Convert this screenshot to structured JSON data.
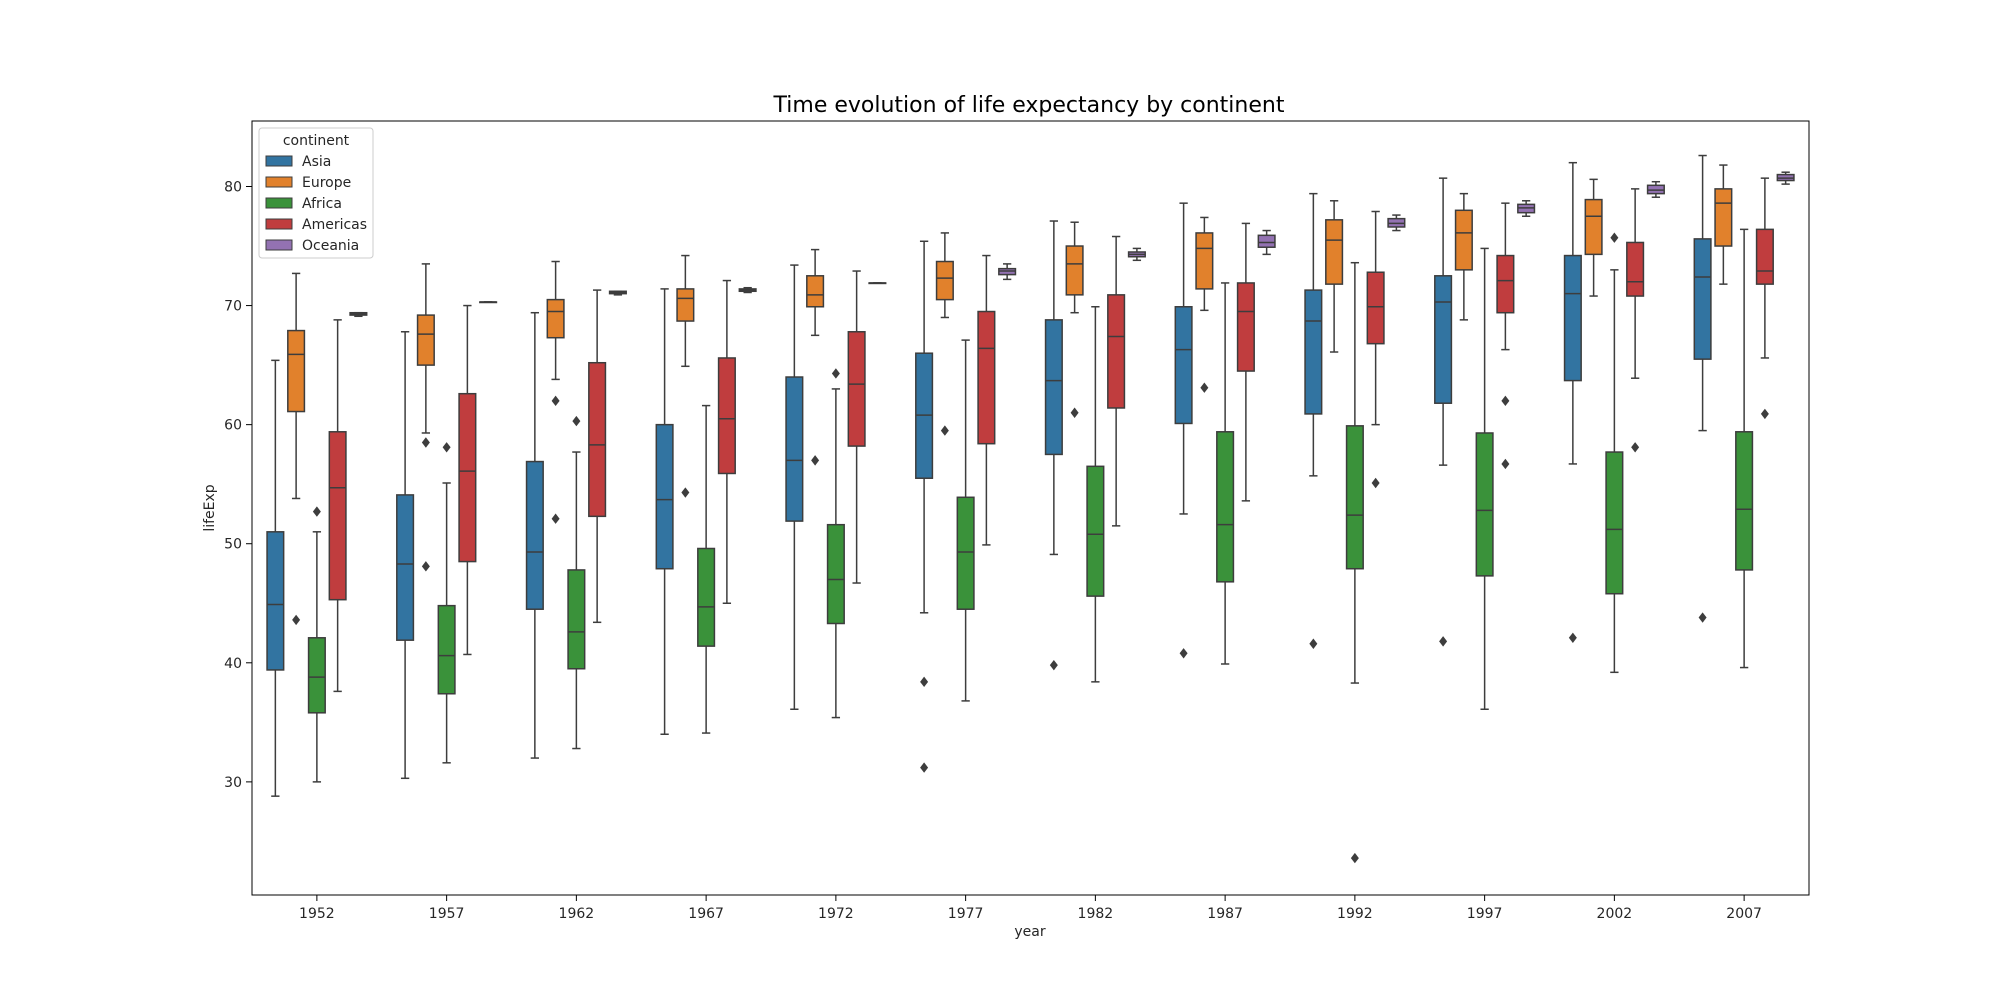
{
  "chart_data": {
    "type": "box",
    "title": "Time evolution of life expectancy by continent",
    "xlabel": "year",
    "ylabel": "lifeExp",
    "ylim": [
      20.5,
      85.5
    ],
    "yticks": [
      30,
      40,
      50,
      60,
      70,
      80
    ],
    "grid": false,
    "legend": {
      "title": "continent",
      "position": "top-left"
    },
    "categories": [
      "1952",
      "1957",
      "1962",
      "1967",
      "1972",
      "1977",
      "1982",
      "1987",
      "1992",
      "1997",
      "2002",
      "2007"
    ],
    "series": [
      {
        "name": "Asia",
        "color": "#3274a1",
        "boxes": [
          {
            "min": 28.8,
            "q1": 39.4,
            "median": 44.9,
            "q3": 51.0,
            "max": 65.4,
            "outliers": []
          },
          {
            "min": 30.3,
            "q1": 41.9,
            "median": 48.3,
            "q3": 54.1,
            "max": 67.8,
            "outliers": []
          },
          {
            "min": 32.0,
            "q1": 44.5,
            "median": 49.3,
            "q3": 56.9,
            "max": 69.4,
            "outliers": []
          },
          {
            "min": 34.0,
            "q1": 47.9,
            "median": 53.7,
            "q3": 60.0,
            "max": 71.4,
            "outliers": []
          },
          {
            "min": 36.1,
            "q1": 51.9,
            "median": 57.0,
            "q3": 64.0,
            "max": 73.4,
            "outliers": []
          },
          {
            "min": 44.2,
            "q1": 55.5,
            "median": 60.8,
            "q3": 66.0,
            "max": 75.4,
            "outliers": [
              38.4,
              31.2
            ]
          },
          {
            "min": 49.1,
            "q1": 57.5,
            "median": 63.7,
            "q3": 68.8,
            "max": 77.1,
            "outliers": [
              39.8
            ]
          },
          {
            "min": 52.5,
            "q1": 60.1,
            "median": 66.3,
            "q3": 69.9,
            "max": 78.6,
            "outliers": [
              40.8
            ]
          },
          {
            "min": 55.7,
            "q1": 60.9,
            "median": 68.7,
            "q3": 71.3,
            "max": 79.4,
            "outliers": [
              41.6
            ]
          },
          {
            "min": 56.6,
            "q1": 61.8,
            "median": 70.3,
            "q3": 72.5,
            "max": 80.7,
            "outliers": [
              41.8
            ]
          },
          {
            "min": 56.7,
            "q1": 63.7,
            "median": 71.0,
            "q3": 74.2,
            "max": 82.0,
            "outliers": [
              42.1
            ]
          },
          {
            "min": 59.5,
            "q1": 65.5,
            "median": 72.4,
            "q3": 75.6,
            "max": 82.6,
            "outliers": [
              43.8
            ]
          }
        ]
      },
      {
        "name": "Europe",
        "color": "#e1812c",
        "boxes": [
          {
            "min": 53.8,
            "q1": 61.1,
            "median": 65.9,
            "q3": 67.9,
            "max": 72.7,
            "outliers": [
              43.6
            ]
          },
          {
            "min": 59.3,
            "q1": 65.0,
            "median": 67.6,
            "q3": 69.2,
            "max": 73.5,
            "outliers": [
              58.5,
              48.1
            ]
          },
          {
            "min": 63.8,
            "q1": 67.3,
            "median": 69.5,
            "q3": 70.5,
            "max": 73.7,
            "outliers": [
              62.0,
              52.1
            ]
          },
          {
            "min": 64.9,
            "q1": 68.7,
            "median": 70.6,
            "q3": 71.4,
            "max": 74.2,
            "outliers": [
              54.3
            ]
          },
          {
            "min": 67.5,
            "q1": 69.9,
            "median": 70.9,
            "q3": 72.5,
            "max": 74.7,
            "outliers": [
              57.0
            ]
          },
          {
            "min": 69.0,
            "q1": 70.5,
            "median": 72.3,
            "q3": 73.7,
            "max": 76.1,
            "outliers": [
              59.5
            ]
          },
          {
            "min": 69.4,
            "q1": 70.9,
            "median": 73.5,
            "q3": 75.0,
            "max": 77.0,
            "outliers": [
              61.0
            ]
          },
          {
            "min": 69.6,
            "q1": 71.4,
            "median": 74.8,
            "q3": 76.1,
            "max": 77.4,
            "outliers": [
              63.1
            ]
          },
          {
            "min": 66.1,
            "q1": 71.8,
            "median": 75.5,
            "q3": 77.2,
            "max": 78.8,
            "outliers": []
          },
          {
            "min": 68.8,
            "q1": 73.0,
            "median": 76.1,
            "q3": 78.0,
            "max": 79.4,
            "outliers": []
          },
          {
            "min": 70.8,
            "q1": 74.3,
            "median": 77.5,
            "q3": 78.9,
            "max": 80.6,
            "outliers": []
          },
          {
            "min": 71.8,
            "q1": 75.0,
            "median": 78.6,
            "q3": 79.8,
            "max": 81.8,
            "outliers": []
          }
        ]
      },
      {
        "name": "Africa",
        "color": "#3a923a",
        "boxes": [
          {
            "min": 30.0,
            "q1": 35.8,
            "median": 38.8,
            "q3": 42.1,
            "max": 51.0,
            "outliers": [
              52.7
            ]
          },
          {
            "min": 31.6,
            "q1": 37.4,
            "median": 40.6,
            "q3": 44.8,
            "max": 55.1,
            "outliers": [
              58.1
            ]
          },
          {
            "min": 32.8,
            "q1": 39.5,
            "median": 42.6,
            "q3": 47.8,
            "max": 57.7,
            "outliers": [
              60.3
            ]
          },
          {
            "min": 34.1,
            "q1": 41.4,
            "median": 44.7,
            "q3": 49.6,
            "max": 61.6,
            "outliers": []
          },
          {
            "min": 35.4,
            "q1": 43.3,
            "median": 47.0,
            "q3": 51.6,
            "max": 63.0,
            "outliers": [
              64.3
            ]
          },
          {
            "min": 36.8,
            "q1": 44.5,
            "median": 49.3,
            "q3": 53.9,
            "max": 67.1,
            "outliers": []
          },
          {
            "min": 38.4,
            "q1": 45.6,
            "median": 50.8,
            "q3": 56.5,
            "max": 69.9,
            "outliers": []
          },
          {
            "min": 39.9,
            "q1": 46.8,
            "median": 51.6,
            "q3": 59.4,
            "max": 71.9,
            "outliers": []
          },
          {
            "min": 38.3,
            "q1": 47.9,
            "median": 52.4,
            "q3": 59.9,
            "max": 73.6,
            "outliers": [
              23.6
            ]
          },
          {
            "min": 36.1,
            "q1": 47.3,
            "median": 52.8,
            "q3": 59.3,
            "max": 74.8,
            "outliers": []
          },
          {
            "min": 39.2,
            "q1": 45.8,
            "median": 51.2,
            "q3": 57.7,
            "max": 73.0,
            "outliers": [
              75.7
            ]
          },
          {
            "min": 39.6,
            "q1": 47.8,
            "median": 52.9,
            "q3": 59.4,
            "max": 76.4,
            "outliers": []
          }
        ]
      },
      {
        "name": "Americas",
        "color": "#c03d3e",
        "boxes": [
          {
            "min": 37.6,
            "q1": 45.3,
            "median": 54.7,
            "q3": 59.4,
            "max": 68.8,
            "outliers": []
          },
          {
            "min": 40.7,
            "q1": 48.5,
            "median": 56.1,
            "q3": 62.6,
            "max": 70.0,
            "outliers": []
          },
          {
            "min": 43.4,
            "q1": 52.3,
            "median": 58.3,
            "q3": 65.2,
            "max": 71.3,
            "outliers": []
          },
          {
            "min": 45.0,
            "q1": 55.9,
            "median": 60.5,
            "q3": 65.6,
            "max": 72.1,
            "outliers": []
          },
          {
            "min": 46.7,
            "q1": 58.2,
            "median": 63.4,
            "q3": 67.8,
            "max": 72.9,
            "outliers": []
          },
          {
            "min": 49.9,
            "q1": 58.4,
            "median": 66.4,
            "q3": 69.5,
            "max": 74.2,
            "outliers": []
          },
          {
            "min": 51.5,
            "q1": 61.4,
            "median": 67.4,
            "q3": 70.9,
            "max": 75.8,
            "outliers": []
          },
          {
            "min": 53.6,
            "q1": 64.5,
            "median": 69.5,
            "q3": 71.9,
            "max": 76.9,
            "outliers": []
          },
          {
            "min": 60.0,
            "q1": 66.8,
            "median": 69.9,
            "q3": 72.8,
            "max": 77.9,
            "outliers": [
              55.1
            ]
          },
          {
            "min": 66.3,
            "q1": 69.4,
            "median": 72.1,
            "q3": 74.2,
            "max": 78.6,
            "outliers": [
              62.0,
              56.7
            ]
          },
          {
            "min": 63.9,
            "q1": 70.8,
            "median": 72.0,
            "q3": 75.3,
            "max": 79.8,
            "outliers": [
              58.1
            ]
          },
          {
            "min": 65.6,
            "q1": 71.8,
            "median": 72.9,
            "q3": 76.4,
            "max": 80.7,
            "outliers": [
              60.9
            ]
          }
        ]
      },
      {
        "name": "Oceania",
        "color": "#9372b2",
        "boxes": [
          {
            "min": 69.1,
            "q1": 69.2,
            "median": 69.3,
            "q3": 69.4,
            "max": 69.4,
            "outliers": []
          },
          {
            "min": 70.3,
            "q1": 70.3,
            "median": 70.3,
            "q3": 70.3,
            "max": 70.3,
            "outliers": []
          },
          {
            "min": 70.9,
            "q1": 71.0,
            "median": 71.1,
            "q3": 71.2,
            "max": 71.2,
            "outliers": []
          },
          {
            "min": 71.1,
            "q1": 71.2,
            "median": 71.3,
            "q3": 71.4,
            "max": 71.5,
            "outliers": []
          },
          {
            "min": 71.9,
            "q1": 71.9,
            "median": 71.9,
            "q3": 71.9,
            "max": 71.9,
            "outliers": []
          },
          {
            "min": 72.2,
            "q1": 72.6,
            "median": 72.9,
            "q3": 73.1,
            "max": 73.5,
            "outliers": []
          },
          {
            "min": 73.8,
            "q1": 74.1,
            "median": 74.3,
            "q3": 74.5,
            "max": 74.8,
            "outliers": []
          },
          {
            "min": 74.3,
            "q1": 74.9,
            "median": 75.3,
            "q3": 75.9,
            "max": 76.3,
            "outliers": []
          },
          {
            "min": 76.3,
            "q1": 76.6,
            "median": 76.9,
            "q3": 77.3,
            "max": 77.6,
            "outliers": []
          },
          {
            "min": 77.5,
            "q1": 77.8,
            "median": 78.2,
            "q3": 78.5,
            "max": 78.8,
            "outliers": []
          },
          {
            "min": 79.1,
            "q1": 79.4,
            "median": 79.7,
            "q3": 80.1,
            "max": 80.4,
            "outliers": []
          },
          {
            "min": 80.2,
            "q1": 80.5,
            "median": 80.7,
            "q3": 81.0,
            "max": 81.2,
            "outliers": []
          }
        ]
      }
    ]
  }
}
